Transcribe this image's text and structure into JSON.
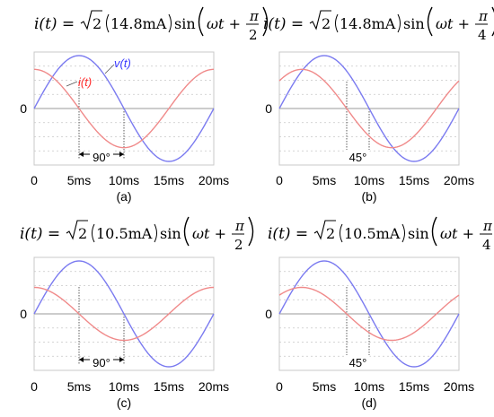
{
  "colors": {
    "voltage": "#7b7bf0",
    "current": "#f08a8a",
    "voltage_label": "#3a3aff",
    "current_label": "#ff2a2a",
    "grid": "#c8c8c8",
    "frame": "#c8c8c8"
  },
  "chart_data": [
    {
      "type": "line",
      "caption": "(a)",
      "equation": {
        "lhs": "i(t) =",
        "amplitude": "14.8mA",
        "func": "sin",
        "arg": "ωt +",
        "phase_num": "π",
        "phase_den": "2"
      },
      "x_unit": "ms",
      "xlim": [
        0,
        20
      ],
      "x_ticks": [
        "0",
        "5ms",
        "10ms",
        "15ms",
        "20ms"
      ],
      "y_ticks": [
        "0"
      ],
      "series": [
        {
          "name": "v(t)",
          "amplitude": 1.0,
          "phase_deg": 0,
          "period_ms": 20
        },
        {
          "name": "i(t)",
          "amplitude": 0.74,
          "phase_deg": 90,
          "period_ms": 20
        }
      ],
      "annotation": {
        "label": "90°",
        "from_ms": 5,
        "to_ms": 10
      }
    },
    {
      "type": "line",
      "caption": "(b)",
      "equation": {
        "lhs": "i(t) =",
        "amplitude": "14.8mA",
        "func": "sin",
        "arg": "ωt +",
        "phase_num": "π",
        "phase_den": "4"
      },
      "x_unit": "ms",
      "xlim": [
        0,
        20
      ],
      "x_ticks": [
        "0",
        "5ms",
        "10ms",
        "15ms",
        "20ms"
      ],
      "y_ticks": [
        "0"
      ],
      "series": [
        {
          "name": "v(t)",
          "amplitude": 1.0,
          "phase_deg": 0,
          "period_ms": 20
        },
        {
          "name": "i(t)",
          "amplitude": 0.74,
          "phase_deg": 45,
          "period_ms": 20
        }
      ],
      "annotation": {
        "label": "45°",
        "from_ms": 7.5,
        "to_ms": 10
      }
    },
    {
      "type": "line",
      "caption": "(c)",
      "equation": {
        "lhs": "i(t) =",
        "amplitude": "10.5mA",
        "func": "sin",
        "arg": "ωt +",
        "phase_num": "π",
        "phase_den": "2"
      },
      "x_unit": "ms",
      "xlim": [
        0,
        20
      ],
      "x_ticks": [
        "0",
        "5ms",
        "10ms",
        "15ms",
        "20ms"
      ],
      "y_ticks": [
        "0"
      ],
      "series": [
        {
          "name": "v(t)",
          "amplitude": 1.0,
          "phase_deg": 0,
          "period_ms": 20
        },
        {
          "name": "i(t)",
          "amplitude": 0.5,
          "phase_deg": 90,
          "period_ms": 20
        }
      ],
      "annotation": {
        "label": "90°",
        "from_ms": 5,
        "to_ms": 10
      }
    },
    {
      "type": "line",
      "caption": "(d)",
      "equation": {
        "lhs": "i(t) =",
        "amplitude": "10.5mA",
        "func": "sin",
        "arg": "ωt +",
        "phase_num": "π",
        "phase_den": "4"
      },
      "x_unit": "ms",
      "xlim": [
        0,
        20
      ],
      "x_ticks": [
        "0",
        "5ms",
        "10ms",
        "15ms",
        "20ms"
      ],
      "y_ticks": [
        "0"
      ],
      "series": [
        {
          "name": "v(t)",
          "amplitude": 1.0,
          "phase_deg": 0,
          "period_ms": 20
        },
        {
          "name": "i(t)",
          "amplitude": 0.5,
          "phase_deg": 45,
          "period_ms": 20
        }
      ],
      "annotation": {
        "label": "45°",
        "from_ms": 7.5,
        "to_ms": 10
      }
    }
  ],
  "legend_labels": {
    "voltage": "v(t)",
    "current": "i(t)"
  }
}
